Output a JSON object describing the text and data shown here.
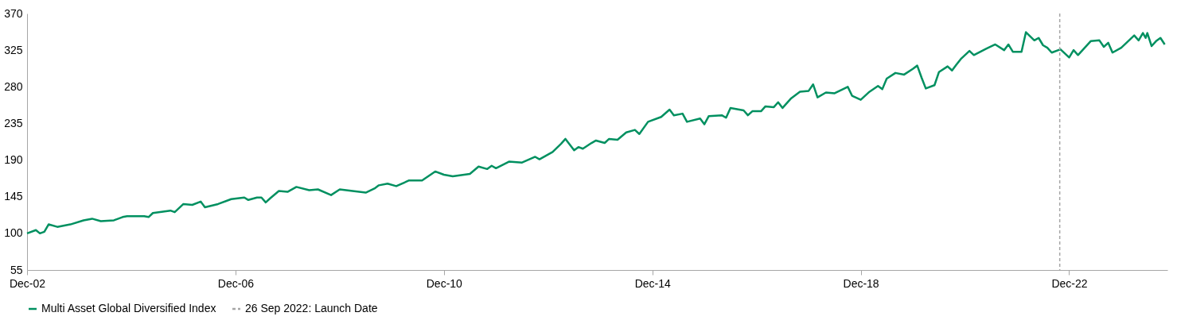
{
  "chart_data": {
    "type": "line",
    "x": [
      "2002-12",
      "2003-02",
      "2003-03",
      "2003-04",
      "2003-05",
      "2003-07",
      "2003-10",
      "2004-01",
      "2004-03",
      "2004-05",
      "2004-08",
      "2004-10",
      "2004-11",
      "2005-03",
      "2005-04",
      "2005-05",
      "2005-09",
      "2005-10",
      "2005-12",
      "2006-02",
      "2006-04",
      "2006-05",
      "2006-08",
      "2006-11",
      "2007-02",
      "2007-03",
      "2007-05",
      "2007-06",
      "2007-07",
      "2007-08",
      "2007-10",
      "2007-12",
      "2008-02",
      "2008-05",
      "2008-07",
      "2008-10",
      "2008-12",
      "2009-03",
      "2009-06",
      "2009-08",
      "2009-09",
      "2009-11",
      "2010-01",
      "2010-04",
      "2010-07",
      "2010-10",
      "2010-12",
      "2011-02",
      "2011-06",
      "2011-08",
      "2011-10",
      "2011-11",
      "2011-12",
      "2012-03",
      "2012-06",
      "2012-09",
      "2012-10",
      "2013-01",
      "2013-03",
      "2013-04",
      "2013-06",
      "2013-07",
      "2013-08",
      "2013-10",
      "2013-11",
      "2014-01",
      "2014-02",
      "2014-04",
      "2014-06",
      "2014-08",
      "2014-09",
      "2014-11",
      "2015-02",
      "2015-04",
      "2015-05",
      "2015-07",
      "2015-08",
      "2015-11",
      "2015-12",
      "2016-01",
      "2016-04",
      "2016-05",
      "2016-06",
      "2016-09",
      "2016-10",
      "2016-11",
      "2017-01",
      "2017-02",
      "2017-04",
      "2017-05",
      "2017-06",
      "2017-08",
      "2017-10",
      "2017-12",
      "2018-01",
      "2018-02",
      "2018-04",
      "2018-06",
      "2018-09",
      "2018-10",
      "2018-12",
      "2019-02",
      "2019-04",
      "2019-05",
      "2019-06",
      "2019-08",
      "2019-10",
      "2019-12",
      "2020-01",
      "2020-02",
      "2020-03",
      "2020-05",
      "2020-06",
      "2020-08",
      "2020-09",
      "2020-10",
      "2020-11",
      "2021-01",
      "2021-02",
      "2021-05",
      "2021-07",
      "2021-09",
      "2021-10",
      "2021-11",
      "2022-01",
      "2022-02",
      "2022-04",
      "2022-05",
      "2022-06",
      "2022-07",
      "2022-08",
      "2022-10",
      "2022-12",
      "2023-01",
      "2023-02",
      "2023-05",
      "2023-07",
      "2023-08",
      "2023-09",
      "2023-10",
      "2023-12",
      "2024-01",
      "2024-03",
      "2024-04",
      "2024-05",
      "2024-05-20",
      "2024-06",
      "2024-07",
      "2024-08",
      "2024-09",
      "2024-10"
    ],
    "series": [
      {
        "name": "Multi Asset Global Diversified Index",
        "color": "#009060",
        "values": [
          100,
          104,
          100,
          102,
          111,
          108,
          111,
          116,
          118,
          115,
          116,
          120,
          121,
          121,
          120,
          125,
          128,
          126,
          136,
          135,
          139,
          132,
          136,
          142,
          144,
          141,
          144,
          144,
          138,
          143,
          152,
          151,
          157,
          153,
          154,
          147,
          154,
          152,
          150,
          155,
          159,
          161,
          158,
          165,
          165,
          176,
          172,
          170,
          173,
          182,
          179,
          183,
          180,
          188,
          187,
          194,
          191,
          200,
          210,
          216,
          202,
          206,
          204,
          211,
          214,
          211,
          216,
          215,
          224,
          227,
          222,
          237,
          243,
          252,
          245,
          247,
          237,
          241,
          234,
          244,
          245,
          242,
          254,
          251,
          245,
          250,
          250,
          256,
          255,
          261,
          254,
          266,
          274,
          275,
          283,
          267,
          273,
          272,
          280,
          269,
          264,
          274,
          281,
          277,
          290,
          297,
          295,
          302,
          306,
          291,
          278,
          282,
          298,
          305,
          300,
          307,
          314,
          324,
          319,
          327,
          332,
          325,
          332,
          323,
          323,
          347,
          337,
          340,
          331,
          328,
          322,
          326,
          316,
          325,
          319,
          336,
          337,
          329,
          334,
          322,
          328,
          333,
          343,
          337,
          346,
          340,
          346,
          330,
          336,
          340,
          332
        ]
      }
    ],
    "xlim": [
      "2002-12",
      "2024-10-20"
    ],
    "xticks": [
      {
        "value": "2002-12",
        "label": "Dec-02"
      },
      {
        "value": "2006-12",
        "label": "Dec-06"
      },
      {
        "value": "2010-12",
        "label": "Dec-10"
      },
      {
        "value": "2014-12",
        "label": "Dec-14"
      },
      {
        "value": "2018-12",
        "label": "Dec-18"
      },
      {
        "value": "2022-12",
        "label": "Dec-22"
      }
    ],
    "ylim": [
      55,
      370
    ],
    "yticks": [
      55,
      100,
      145,
      190,
      235,
      280,
      325,
      370
    ],
    "ref_lines": [
      {
        "axis": "x",
        "value": "2022-09-26",
        "label": "26 Sep 2022: Launch Date",
        "color": "#a6a6a6",
        "line_style": "dashed"
      }
    ],
    "grid": false,
    "legend": "bottom",
    "line_style": "solid"
  }
}
